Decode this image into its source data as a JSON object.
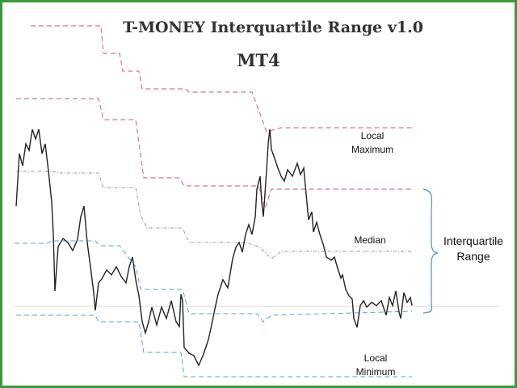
{
  "chart_data": {
    "type": "line",
    "title": "T-MONEY Interquartile Range  v1.0",
    "subtitle": "MT4",
    "annotations": {
      "local_maximum": [
        "Local",
        "Maximum"
      ],
      "median": "Median",
      "iqr": [
        "Interquartile",
        "Range"
      ],
      "local_minimum": [
        "Local",
        "Minimum"
      ]
    },
    "colors": {
      "frame": "#3a9a3a",
      "upper": "#e07090",
      "median": "#999999",
      "lower": "#5aa0d8",
      "price": "#222222",
      "brace": "#4a90d0"
    }
  }
}
